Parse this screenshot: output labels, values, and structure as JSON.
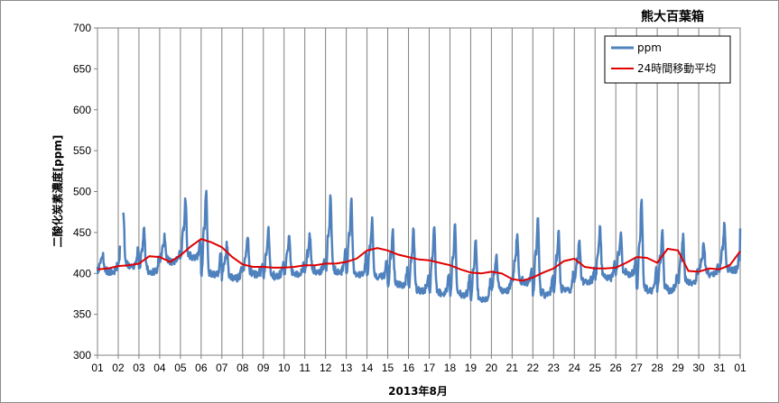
{
  "chart_data": {
    "type": "line",
    "title": "熊大百葉箱",
    "xlabel": "2013年8月",
    "ylabel": "二酸化炭素濃度[ppm]",
    "ylim": [
      300,
      700
    ],
    "yticks": [
      300,
      350,
      400,
      450,
      500,
      550,
      600,
      650,
      700
    ],
    "xlim": [
      1,
      32
    ],
    "xtick_labels": [
      "01",
      "02",
      "03",
      "04",
      "05",
      "06",
      "07",
      "08",
      "09",
      "10",
      "11",
      "12",
      "13",
      "14",
      "15",
      "16",
      "17",
      "18",
      "19",
      "20",
      "21",
      "22",
      "23",
      "24",
      "25",
      "26",
      "27",
      "28",
      "29",
      "30",
      "31",
      "01"
    ],
    "grid": "vertical lines at each day",
    "legend_position": "top-right",
    "colors": {
      "ppm": "#4f81bd",
      "moving_average": "#e00000"
    },
    "series": [
      {
        "name": "ppm",
        "style": "daily-cycle line: late-night/morning peak, afternoon low",
        "day": [
          1,
          2,
          3,
          4,
          5,
          6,
          7,
          8,
          9,
          10,
          11,
          12,
          13,
          14,
          15,
          16,
          17,
          18,
          19,
          20,
          21,
          22,
          23,
          24,
          25,
          26,
          27,
          28,
          29,
          30,
          31
        ],
        "daily_min": [
          398,
          405,
          398,
          410,
          415,
          395,
          390,
          395,
          392,
          395,
          398,
          398,
          395,
          392,
          382,
          375,
          372,
          370,
          365,
          375,
          385,
          370,
          375,
          385,
          390,
          395,
          375,
          375,
          385,
          395,
          400
        ],
        "daily_max": [
          425,
          480,
          455,
          445,
          490,
          502,
          435,
          445,
          455,
          445,
          445,
          492,
          492,
          465,
          452,
          452,
          460,
          458,
          445,
          422,
          445,
          470,
          452,
          440,
          455,
          450,
          490,
          452,
          445,
          435,
          458
        ],
        "gaps": [
          [
            2.1,
            2.25
          ]
        ]
      },
      {
        "name": "24時間移動平均",
        "x": [
          1,
          1.5,
          2,
          2.5,
          3,
          3.5,
          4,
          4.5,
          5,
          5.5,
          6,
          6.5,
          7,
          7.5,
          8,
          8.5,
          9,
          9.5,
          10,
          10.5,
          11,
          11.5,
          12,
          12.5,
          13,
          13.5,
          14,
          14.5,
          15,
          15.5,
          16,
          16.5,
          17,
          17.5,
          18,
          18.5,
          19,
          19.5,
          20,
          20.5,
          21,
          21.5,
          22,
          22.5,
          23,
          23.5,
          24,
          24.5,
          25,
          25.5,
          26,
          26.5,
          27,
          27.5,
          28,
          28.5,
          29,
          29.5,
          30,
          30.5,
          31,
          31.5,
          32
        ],
        "values": [
          405,
          406,
          409,
          410,
          412,
          421,
          420,
          414,
          422,
          433,
          442,
          438,
          432,
          420,
          411,
          408,
          408,
          407,
          407,
          408,
          410,
          410,
          412,
          412,
          414,
          418,
          428,
          431,
          428,
          423,
          420,
          417,
          416,
          413,
          410,
          405,
          401,
          400,
          402,
          400,
          393,
          391,
          395,
          401,
          406,
          415,
          418,
          408,
          406,
          406,
          407,
          413,
          420,
          419,
          413,
          430,
          428,
          403,
          402,
          406,
          405,
          410,
          427
        ]
      }
    ]
  }
}
